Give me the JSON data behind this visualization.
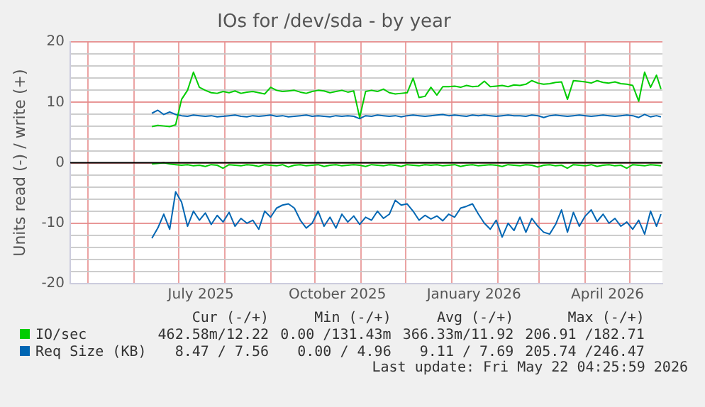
{
  "chart_data": {
    "type": "line",
    "title": "IOs for /dev/sda - by year",
    "ylabel": "Units read (-) / write (+)",
    "x": [
      "2025-06-13",
      "2025-06-17",
      "2025-06-21",
      "2025-06-25",
      "2025-06-29",
      "2025-07-03",
      "2025-07-07",
      "2025-07-11",
      "2025-07-15",
      "2025-07-19",
      "2025-07-23",
      "2025-07-27",
      "2025-07-31",
      "2025-08-04",
      "2025-08-08",
      "2025-08-12",
      "2025-08-16",
      "2025-08-20",
      "2025-08-24",
      "2025-08-28",
      "2025-09-01",
      "2025-09-05",
      "2025-09-09",
      "2025-09-13",
      "2025-09-17",
      "2025-09-21",
      "2025-09-25",
      "2025-09-29",
      "2025-10-03",
      "2025-10-07",
      "2025-10-11",
      "2025-10-15",
      "2025-10-19",
      "2025-10-23",
      "2025-10-27",
      "2025-10-31",
      "2025-11-04",
      "2025-11-08",
      "2025-11-12",
      "2025-11-16",
      "2025-11-20",
      "2025-11-24",
      "2025-11-28",
      "2025-12-02",
      "2025-12-06",
      "2025-12-10",
      "2025-12-14",
      "2025-12-18",
      "2025-12-22",
      "2025-12-26",
      "2025-12-30",
      "2026-01-03",
      "2026-01-07",
      "2026-01-11",
      "2026-01-15",
      "2026-01-19",
      "2026-01-23",
      "2026-01-27",
      "2026-01-31",
      "2026-02-04",
      "2026-02-08",
      "2026-02-12",
      "2026-02-16",
      "2026-02-20",
      "2026-02-24",
      "2026-02-28",
      "2026-03-04",
      "2026-03-08",
      "2026-03-12",
      "2026-03-16",
      "2026-03-20",
      "2026-03-24",
      "2026-03-28",
      "2026-04-01",
      "2026-04-05",
      "2026-04-09",
      "2026-04-13",
      "2026-04-17",
      "2026-04-21",
      "2026-04-25",
      "2026-04-29",
      "2026-05-03",
      "2026-05-07",
      "2026-05-11",
      "2026-05-15",
      "2026-05-19",
      "2026-05-22"
    ],
    "series": [
      {
        "name": "IO/sec",
        "color": "#00cc00",
        "values": [
          6.0,
          6.2,
          6.1,
          6.0,
          6.3,
          10.5,
          12.0,
          15.0,
          12.5,
          12.0,
          11.6,
          11.5,
          11.8,
          11.6,
          11.9,
          11.5,
          11.7,
          11.8,
          11.6,
          11.4,
          12.5,
          12.0,
          11.8,
          11.9,
          12.0,
          11.7,
          11.5,
          11.8,
          12.0,
          11.9,
          11.6,
          11.8,
          12.0,
          11.7,
          11.9,
          7.5,
          11.8,
          12.0,
          11.8,
          12.2,
          11.6,
          11.4,
          11.5,
          11.6,
          14.0,
          10.8,
          11.0,
          12.5,
          11.2,
          12.6,
          12.6,
          12.7,
          12.5,
          12.8,
          12.6,
          12.7,
          13.5,
          12.6,
          12.7,
          12.8,
          12.6,
          12.9,
          12.8,
          13.0,
          13.6,
          13.2,
          13.0,
          13.1,
          13.3,
          13.4,
          10.5,
          13.6,
          13.5,
          13.4,
          13.2,
          13.6,
          13.3,
          13.2,
          13.4,
          13.1,
          13.0,
          12.8,
          10.2,
          15.0,
          12.5,
          14.5,
          12.2
        ]
      },
      {
        "name": "Req Size (KB)",
        "color": "#0066b3",
        "values": [
          8.2,
          8.7,
          8.0,
          8.4,
          8.0,
          7.8,
          7.7,
          7.9,
          7.8,
          7.7,
          7.8,
          7.6,
          7.7,
          7.8,
          7.9,
          7.7,
          7.6,
          7.8,
          7.7,
          7.8,
          7.9,
          7.7,
          7.8,
          7.6,
          7.7,
          7.8,
          7.9,
          7.7,
          7.8,
          7.7,
          7.6,
          7.8,
          7.7,
          7.8,
          7.7,
          7.3,
          7.8,
          7.7,
          7.9,
          7.8,
          7.7,
          7.8,
          7.6,
          7.8,
          7.9,
          7.8,
          7.7,
          7.8,
          7.9,
          8.0,
          7.8,
          7.9,
          7.8,
          7.7,
          7.9,
          7.8,
          7.9,
          7.8,
          7.7,
          7.8,
          7.9,
          7.8,
          7.8,
          7.7,
          7.9,
          7.8,
          7.5,
          7.8,
          7.9,
          7.8,
          7.7,
          7.8,
          7.9,
          7.8,
          7.7,
          7.8,
          7.9,
          7.8,
          7.7,
          7.8,
          7.9,
          7.8,
          7.5,
          8.0,
          7.6,
          7.8,
          7.6
        ]
      },
      {
        "color": "#00cc00",
        "values": [
          -0.2,
          -0.1,
          0,
          -0.2,
          -0.3,
          -0.4,
          -0.3,
          -0.5,
          -0.4,
          -0.6,
          -0.3,
          -0.4,
          -0.9,
          -0.3,
          -0.4,
          -0.5,
          -0.3,
          -0.4,
          -0.6,
          -0.3,
          -0.4,
          -0.5,
          -0.3,
          -0.7,
          -0.4,
          -0.3,
          -0.5,
          -0.4,
          -0.3,
          -0.6,
          -0.4,
          -0.3,
          -0.5,
          -0.4,
          -0.3,
          -0.4,
          -0.6,
          -0.3,
          -0.4,
          -0.5,
          -0.3,
          -0.4,
          -0.6,
          -0.3,
          -0.4,
          -0.5,
          -0.3,
          -0.4,
          -0.3,
          -0.5,
          -0.4,
          -0.3,
          -0.6,
          -0.4,
          -0.3,
          -0.5,
          -0.4,
          -0.3,
          -0.4,
          -0.6,
          -0.3,
          -0.4,
          -0.5,
          -0.3,
          -0.4,
          -0.7,
          -0.4,
          -0.3,
          -0.5,
          -0.4,
          -0.9,
          -0.3,
          -0.4,
          -0.5,
          -0.3,
          -0.6,
          -0.4,
          -0.3,
          -0.5,
          -0.4,
          -0.9,
          -0.3,
          -0.4,
          -0.5,
          -0.3,
          -0.4,
          -0.5
        ]
      },
      {
        "color": "#0066b3",
        "values": [
          -12.5,
          -10.8,
          -8.5,
          -11.0,
          -4.8,
          -6.5,
          -10.5,
          -8.0,
          -9.5,
          -8.3,
          -10.2,
          -8.7,
          -9.8,
          -8.2,
          -10.5,
          -9.2,
          -10.0,
          -9.5,
          -11.0,
          -8.0,
          -9.0,
          -7.5,
          -7.0,
          -6.8,
          -7.5,
          -9.5,
          -10.8,
          -10.0,
          -8.0,
          -10.5,
          -9.0,
          -10.8,
          -8.5,
          -9.8,
          -8.8,
          -10.2,
          -9.0,
          -9.5,
          -8.0,
          -9.2,
          -8.5,
          -6.2,
          -7.0,
          -6.8,
          -8.0,
          -9.5,
          -8.7,
          -9.3,
          -8.8,
          -9.6,
          -8.5,
          -9.0,
          -7.5,
          -7.2,
          -6.8,
          -8.5,
          -10.0,
          -11.0,
          -9.5,
          -12.3,
          -10.0,
          -11.2,
          -9.0,
          -11.5,
          -9.2,
          -10.5,
          -11.5,
          -11.8,
          -10.2,
          -7.8,
          -11.5,
          -8.2,
          -10.5,
          -8.8,
          -7.8,
          -9.7,
          -8.5,
          -10.0,
          -9.2,
          -10.5,
          -9.8,
          -11.0,
          -9.5,
          -11.8,
          -8.0,
          -10.5,
          -8.5
        ]
      }
    ],
    "xlim": [
      "2025-04-19",
      "2026-05-23"
    ],
    "xticks": [
      {
        "value": "2025-05-01",
        "label": null
      },
      {
        "value": "2025-06-01",
        "label": null
      },
      {
        "value": "2025-07-01",
        "label": null
      },
      {
        "value": "2025-07-16",
        "label": "July 2025"
      },
      {
        "value": "2025-08-01",
        "label": null
      },
      {
        "value": "2025-09-01",
        "label": null
      },
      {
        "value": "2025-10-01",
        "label": null
      },
      {
        "value": "2025-10-16",
        "label": "October 2025"
      },
      {
        "value": "2025-11-01",
        "label": null
      },
      {
        "value": "2025-12-01",
        "label": null
      },
      {
        "value": "2026-01-01",
        "label": null
      },
      {
        "value": "2026-01-16",
        "label": "January 2026"
      },
      {
        "value": "2026-02-01",
        "label": null
      },
      {
        "value": "2026-03-01",
        "label": null
      },
      {
        "value": "2026-04-01",
        "label": null
      },
      {
        "value": "2026-04-16",
        "label": "April 2026"
      },
      {
        "value": "2026-05-01",
        "label": null
      }
    ],
    "ylim": [
      -20,
      20
    ],
    "yticks": [
      -20,
      {
        "value": -18,
        "label": null
      },
      {
        "value": -16,
        "label": null
      },
      {
        "value": -14,
        "label": null
      },
      {
        "value": -12,
        "label": null
      },
      -10,
      {
        "value": -8,
        "label": null
      },
      {
        "value": -6,
        "label": null
      },
      {
        "value": -4,
        "label": null
      },
      {
        "value": -2,
        "label": null
      },
      0,
      {
        "value": 2,
        "label": null
      },
      {
        "value": 4,
        "label": null
      },
      {
        "value": 6,
        "label": null
      },
      {
        "value": 8,
        "label": null
      },
      10,
      {
        "value": 12,
        "label": null
      },
      {
        "value": 14,
        "label": null
      },
      {
        "value": 16,
        "label": null
      },
      {
        "value": 18,
        "label": null
      },
      20
    ],
    "grid": true,
    "legend": "bottom",
    "annotations": [
      "Cur (-/+)",
      "Min (-/+)",
      "Avg (-/+)",
      "Max (-/+)",
      "462.58m/12.22",
      "0.00 /131.43m",
      "366.33m/11.92",
      "206.91 /182.71",
      "8.47 / 7.56",
      "0.00 / 4.96",
      "9.11 / 7.69",
      "205.74 /246.47",
      "Last update: Fri May 22 04:25:59 2026"
    ]
  }
}
